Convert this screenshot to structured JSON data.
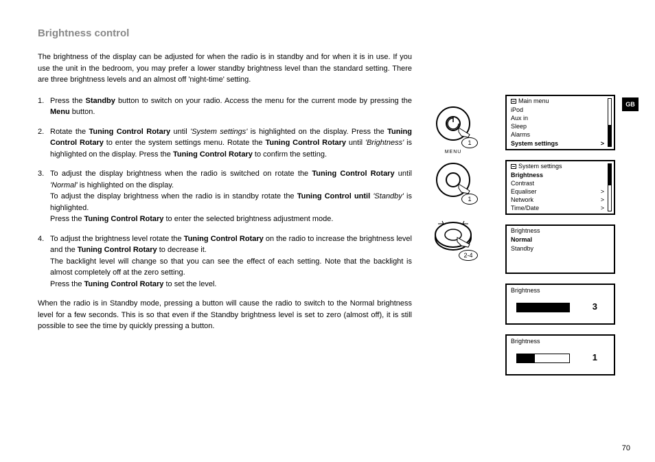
{
  "title": "Brightness control",
  "intro": "The brightness of the display can be adjusted for when the radio is in standby  and for when it is in use. If you use the unit in the bedroom, you may prefer a lower standby brightness level than the standard setting. There are three brightness levels and an almost off 'night-time' setting.",
  "steps": {
    "s1a": "Press the ",
    "s1b": "Standby",
    "s1c": " button to switch on your radio. Access the menu for the current mode by pressing the ",
    "s1d": "Menu",
    "s1e": " button.",
    "s2a": "Rotate the ",
    "s2b": "Tuning Control Rotary",
    "s2c": " until ",
    "s2d": "'System settings'",
    "s2e": " is highlighted on the display. Press the ",
    "s2f": "Tuning Control Rotary",
    "s2g": " to enter the system settings menu. Rotate the ",
    "s2h": "Tuning Control Rotary",
    "s2i": " until ",
    "s2j": "'Brightness'",
    "s2k": " is highlighted on the display. Press the ",
    "s2l": "Tuning Control Rotary",
    "s2m": " to confirm the setting.",
    "s3a": "To adjust the display brightness when the radio is switched on rotate the ",
    "s3b": "Tuning Control Rotary",
    "s3c": " until ",
    "s3d": "'Normal'",
    "s3e": " is highlighted on the display.",
    "s3f": "To adjust the display brightness when the radio is in standby rotate the ",
    "s3g": "Tuning Control until",
    "s3h": " ",
    "s3i": "'Standby'",
    "s3j": " is highlighted.",
    "s3k": "Press the ",
    "s3l": "Tuning Control Rotary",
    "s3m": " to enter the selected brightness adjustment mode.",
    "s4a": "To adjust the brightness level rotate the ",
    "s4b": "Tuning Control Rotary",
    "s4c": " on the radio to increase the brightness level and the ",
    "s4d": "Tuning Control Rotary",
    "s4e": " to decrease it.",
    "s4f": "The backlight level will change so that you can see the effect of each setting. Note that the backlight is almost completely off at the zero setting.",
    "s4g": "Press the ",
    "s4h": "Tuning Control Rotary",
    "s4i": " to set the level."
  },
  "after": "When the radio is in Standby mode, pressing a button will cause the radio to switch to the Normal brightness level for a few seconds. This is so that even if the Standby brightness level is set to zero (almost off), it is still possible to see the time by quickly pressing a button.",
  "dials": {
    "d1_badge": "1",
    "d2_label": "MENU",
    "d2_badge": "1",
    "d3_badge": "2-4"
  },
  "gb": "GB",
  "menu_main": {
    "header": "Main menu",
    "items": [
      {
        "label": "iPod",
        "bold": false,
        "chev": ""
      },
      {
        "label": "Aux in",
        "bold": false,
        "chev": ""
      },
      {
        "label": "Sleep",
        "bold": false,
        "chev": ""
      },
      {
        "label": "Alarms",
        "bold": false,
        "chev": ""
      },
      {
        "label": "System settings",
        "bold": true,
        "chev": ">"
      }
    ],
    "thumb_top_pct": 55,
    "thumb_h_pct": 45
  },
  "menu_sys": {
    "header": "System settings",
    "items": [
      {
        "label": "Brightness",
        "bold": true,
        "chev": ""
      },
      {
        "label": "Contrast",
        "bold": false,
        "chev": ""
      },
      {
        "label": "Equaliser",
        "bold": false,
        "chev": ">"
      },
      {
        "label": "Network",
        "bold": false,
        "chev": ">"
      },
      {
        "label": "Time/Date",
        "bold": false,
        "chev": ">"
      }
    ],
    "thumb_top_pct": 0,
    "thumb_h_pct": 45
  },
  "menu_bright": {
    "header": "Brightness",
    "items": [
      {
        "label": "Normal",
        "bold": true,
        "chev": ""
      },
      {
        "label": "Standby",
        "bold": false,
        "chev": ""
      }
    ]
  },
  "level1": {
    "header": "Brightness",
    "value": "3",
    "fill_pct": 100
  },
  "level2": {
    "header": "Brightness",
    "value": "1",
    "fill_pct": 34
  },
  "page": "70"
}
